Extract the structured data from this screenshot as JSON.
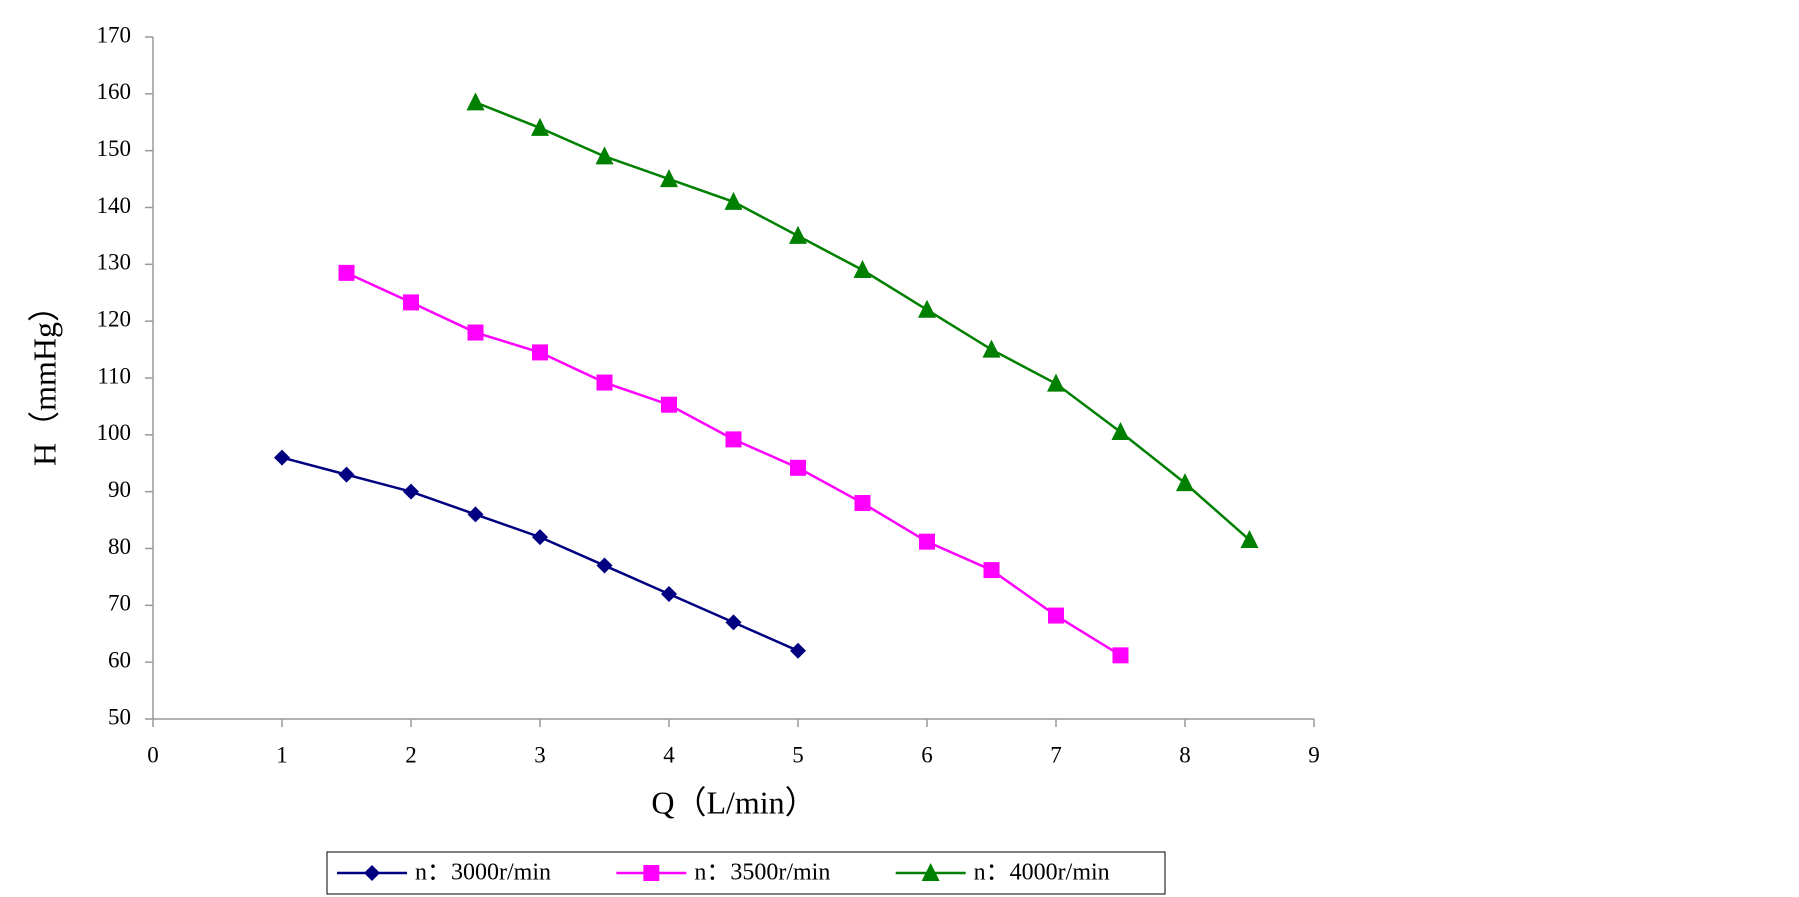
{
  "chart_data": {
    "type": "line",
    "x_label": "Q（L/min）",
    "y_label": "H（mmHg）",
    "xlim": [
      0,
      9
    ],
    "xticks": [
      0,
      1,
      2,
      3,
      4,
      5,
      6,
      7,
      8,
      9
    ],
    "ylim": [
      50,
      170
    ],
    "yticks": [
      50,
      60,
      70,
      80,
      90,
      100,
      110,
      120,
      130,
      140,
      150,
      160,
      170
    ],
    "legend": "bottom",
    "series": [
      {
        "name": "n：3000r/min",
        "color": "#000080",
        "marker": "diamond",
        "x": [
          1,
          1.5,
          2,
          2.5,
          3,
          3.5,
          4,
          4.5,
          5
        ],
        "values": [
          96,
          93,
          90,
          86,
          82,
          77,
          72,
          67,
          62
        ]
      },
      {
        "name": "n：3500r/min",
        "color": "#ff00ff",
        "marker": "square",
        "x": [
          1.5,
          2,
          2.5,
          3,
          3.5,
          4,
          4.5,
          5,
          5.5,
          6,
          6.5,
          7,
          7.5
        ],
        "values": [
          128.5,
          123.3,
          118,
          114.5,
          109.2,
          105.3,
          99.2,
          94.2,
          88,
          81.2,
          76.2,
          68.2,
          61.2
        ]
      },
      {
        "name": "n：4000r/min",
        "color": "#008000",
        "marker": "triangle",
        "x": [
          2.5,
          3,
          3.5,
          4,
          4.5,
          5,
          5.5,
          6,
          6.5,
          7,
          7.5,
          8,
          8.5
        ],
        "values": [
          158.5,
          154,
          149,
          145,
          141,
          135,
          129,
          122,
          115,
          109,
          100.5,
          91.5,
          81.5
        ]
      }
    ]
  }
}
